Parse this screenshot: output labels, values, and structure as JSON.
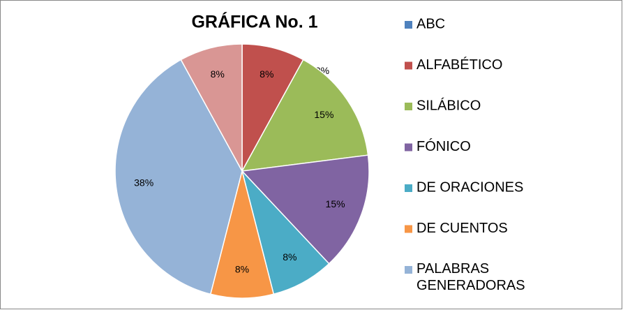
{
  "chart_data": {
    "type": "pie",
    "title": "GRÁFICA No. 1",
    "categories": [
      "ABC",
      "ALFABÉTICO",
      "SILÁBICO",
      "FÓNICO",
      "DE ORACIONES",
      "DE CUENTOS",
      "PALABRAS GENERADORAS",
      null
    ],
    "values": [
      0,
      8,
      15,
      15,
      8,
      8,
      38,
      8
    ],
    "value_labels": [
      "0%",
      "8%",
      "15%",
      "15%",
      "8%",
      "8%",
      "38%",
      "8%"
    ],
    "colors": [
      "#4f81bd",
      "#c0504d",
      "#9bbb59",
      "#8064a2",
      "#4bacc6",
      "#f79646",
      "#95b3d7",
      "#d99694"
    ]
  }
}
